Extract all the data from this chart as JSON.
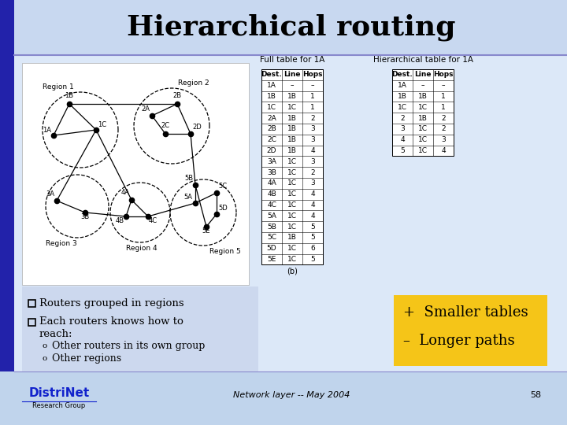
{
  "title": "Hierarchical routing",
  "title_fontsize": 26,
  "bg_top": "#c8d8f0",
  "bg_left_stripe": "#3333aa",
  "bg_content": "#dce8f8",
  "bullet_bg": "#ccdaee",
  "bullet_points": [
    "Routers grouped in regions",
    "Each routers knows how to"
  ],
  "bullet_line3": "reach:",
  "sub_bullets": [
    "Other routers in its own group",
    "Other regions"
  ],
  "yellow_box_lines": [
    "+  Smaller tables",
    "–  Longer paths"
  ],
  "yellow_box_color": "#f5c518",
  "footer_text": "Network layer -- May 2004",
  "footer_page": "58",
  "full_table_title": "Full table for 1A",
  "hier_table_title": "Hierarchical table for 1A",
  "full_table_headers": [
    "Dest.",
    "Line",
    "Hops"
  ],
  "full_table_data": [
    [
      "1A",
      "–",
      "–"
    ],
    [
      "1B",
      "1B",
      "1"
    ],
    [
      "1C",
      "1C",
      "1"
    ],
    [
      "2A",
      "1B",
      "2"
    ],
    [
      "2B",
      "1B",
      "3"
    ],
    [
      "2C",
      "1B",
      "3"
    ],
    [
      "2D",
      "1B",
      "4"
    ],
    [
      "3A",
      "1C",
      "3"
    ],
    [
      "3B",
      "1C",
      "2"
    ],
    [
      "4A",
      "1C",
      "3"
    ],
    [
      "4B",
      "1C",
      "4"
    ],
    [
      "4C",
      "1C",
      "4"
    ],
    [
      "5A",
      "1C",
      "4"
    ],
    [
      "5B",
      "1C",
      "5"
    ],
    [
      "5C",
      "1B",
      "5"
    ],
    [
      "5D",
      "1C",
      "6"
    ],
    [
      "5E",
      "1C",
      "5"
    ]
  ],
  "hier_table_headers": [
    "Dest.",
    "Line",
    "Hops"
  ],
  "hier_table_data": [
    [
      "1A",
      "–",
      "–"
    ],
    [
      "1B",
      "1B",
      "1"
    ],
    [
      "1C",
      "1C",
      "1"
    ],
    [
      "2",
      "1B",
      "2"
    ],
    [
      "3",
      "1C",
      "2"
    ],
    [
      "4",
      "1C",
      "3"
    ],
    [
      "5",
      "1C",
      "4"
    ]
  ],
  "table_caption": "(b)"
}
